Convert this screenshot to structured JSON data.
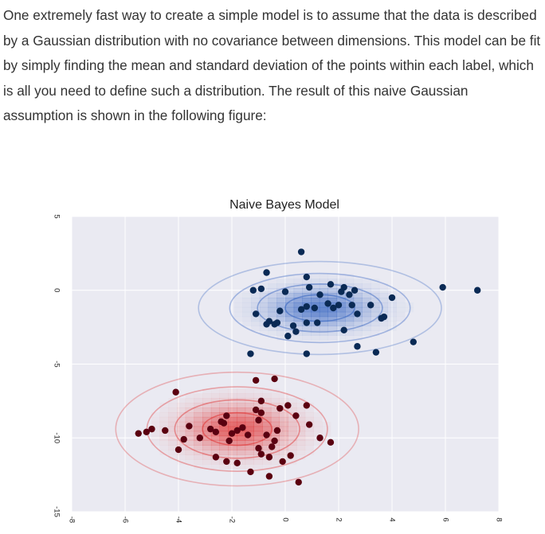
{
  "intro_text": "One extremely fast way to create a simple model is to assume that the data is described by a Gaussian distribution with no covariance between dimensions. This model can be fit by simply finding the mean and standard deviation of the points within each label, which is all you need to define such a distribution. The result of this naive Gaussian assumption is shown in the following figure:",
  "chart_data": {
    "type": "scatter",
    "title": "Naive Bayes Model",
    "xlabel": "",
    "ylabel": "",
    "xlim": [
      -8,
      8
    ],
    "ylim": [
      -15,
      5
    ],
    "xticks": [
      "-8",
      "-6",
      "-4",
      "-2",
      "0",
      "2",
      "4",
      "6",
      "8"
    ],
    "yticks": [
      "5",
      "0",
      "-5",
      "-10",
      "-15"
    ],
    "grid": true,
    "background": "#eaeaf2",
    "series": [
      {
        "color": "#0a2a55",
        "colormap": "#3060c0",
        "mean": [
          1.3,
          -1.2
        ],
        "std": [
          1.3,
          0.9
        ],
        "points": [
          [
            -0.7,
            1.2
          ],
          [
            0.6,
            2.6
          ],
          [
            0.8,
            0.9
          ],
          [
            -1.2,
            0.0
          ],
          [
            -0.9,
            0.1
          ],
          [
            0.0,
            -0.1
          ],
          [
            0.9,
            0.2
          ],
          [
            1.3,
            -0.3
          ],
          [
            1.7,
            0.4
          ],
          [
            2.2,
            0.2
          ],
          [
            2.4,
            -0.3
          ],
          [
            2.6,
            0.0
          ],
          [
            2.1,
            -0.1
          ],
          [
            1.6,
            -0.9
          ],
          [
            1.1,
            -1.2
          ],
          [
            0.6,
            -1.3
          ],
          [
            0.8,
            -1.1
          ],
          [
            1.8,
            -1.2
          ],
          [
            2.0,
            -1.0
          ],
          [
            2.5,
            -1.0
          ],
          [
            3.2,
            -1.0
          ],
          [
            2.7,
            -1.6
          ],
          [
            -0.2,
            -1.4
          ],
          [
            -1.1,
            -1.6
          ],
          [
            -0.6,
            -2.1
          ],
          [
            -0.4,
            -2.3
          ],
          [
            -0.3,
            -2.2
          ],
          [
            -0.7,
            -2.3
          ],
          [
            0.3,
            -2.4
          ],
          [
            0.8,
            -2.2
          ],
          [
            1.2,
            -2.2
          ],
          [
            2.2,
            -2.7
          ],
          [
            3.6,
            -1.9
          ],
          [
            3.7,
            -1.8
          ],
          [
            4.0,
            -0.5
          ],
          [
            0.4,
            -2.8
          ],
          [
            0.1,
            -3.1
          ],
          [
            2.7,
            -3.8
          ],
          [
            -1.3,
            -4.3
          ],
          [
            0.8,
            -4.3
          ],
          [
            3.4,
            -4.2
          ],
          [
            4.8,
            -3.5
          ],
          [
            5.9,
            0.2
          ],
          [
            7.2,
            0.0
          ]
        ]
      },
      {
        "color": "#5a0010",
        "colormap": "#e03030",
        "mean": [
          -1.8,
          -9.4
        ],
        "std": [
          1.3,
          1.1
        ],
        "points": [
          [
            -1.1,
            -6.1
          ],
          [
            -0.4,
            -6.0
          ],
          [
            -4.1,
            -6.9
          ],
          [
            -0.9,
            -7.5
          ],
          [
            0.1,
            -7.8
          ],
          [
            -0.2,
            -8.0
          ],
          [
            0.8,
            -7.8
          ],
          [
            -1.1,
            -8.1
          ],
          [
            -0.9,
            -8.3
          ],
          [
            -2.2,
            -8.5
          ],
          [
            -2.4,
            -8.9
          ],
          [
            -2.3,
            -9.0
          ],
          [
            -1.0,
            -8.8
          ],
          [
            0.4,
            -8.5
          ],
          [
            0.9,
            -9.1
          ],
          [
            -3.6,
            -9.2
          ],
          [
            -1.6,
            -9.3
          ],
          [
            -1.8,
            -9.5
          ],
          [
            -2.0,
            -9.7
          ],
          [
            -2.6,
            -9.6
          ],
          [
            -2.8,
            -9.4
          ],
          [
            -1.4,
            -9.8
          ],
          [
            -0.7,
            -9.8
          ],
          [
            -0.3,
            -9.5
          ],
          [
            -5.0,
            -9.4
          ],
          [
            -5.2,
            -9.6
          ],
          [
            -5.5,
            -9.7
          ],
          [
            -4.5,
            -9.5
          ],
          [
            -2.1,
            -10.2
          ],
          [
            -3.8,
            -10.1
          ],
          [
            -3.2,
            -10.0
          ],
          [
            -0.4,
            -10.2
          ],
          [
            1.3,
            -10.0
          ],
          [
            1.7,
            -10.3
          ],
          [
            -4.0,
            -10.8
          ],
          [
            -1.0,
            -10.7
          ],
          [
            -0.5,
            -10.6
          ],
          [
            -0.9,
            -11.1
          ],
          [
            -0.6,
            -11.3
          ],
          [
            -2.6,
            -11.3
          ],
          [
            -2.2,
            -11.6
          ],
          [
            -1.8,
            -11.7
          ],
          [
            0.2,
            -11.2
          ],
          [
            -0.1,
            -11.6
          ],
          [
            -1.3,
            -12.3
          ],
          [
            -0.6,
            -12.6
          ],
          [
            0.5,
            -13.0
          ]
        ]
      }
    ]
  }
}
